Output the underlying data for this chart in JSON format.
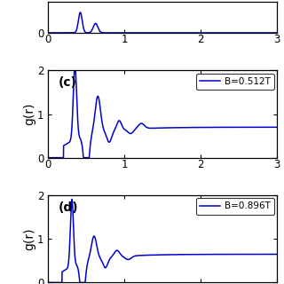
{
  "line_color": "#0000CC",
  "background_color": "#ffffff",
  "xlim": [
    0,
    3
  ],
  "ylim": [
    0,
    2
  ],
  "xticks": [
    0,
    1,
    2,
    3
  ],
  "yticks_full": [
    0,
    1,
    2
  ],
  "ylabel": "g(r)",
  "panel_c_label": "(c)",
  "panel_d_label": "(d)",
  "legend_c": "B=0.512T",
  "legend_d": "B=0.896T",
  "figsize": [
    3.2,
    3.2
  ],
  "dpi": 100,
  "top_height_ratio": 0.18,
  "mid_height_ratio": 0.41,
  "bot_height_ratio": 0.41
}
